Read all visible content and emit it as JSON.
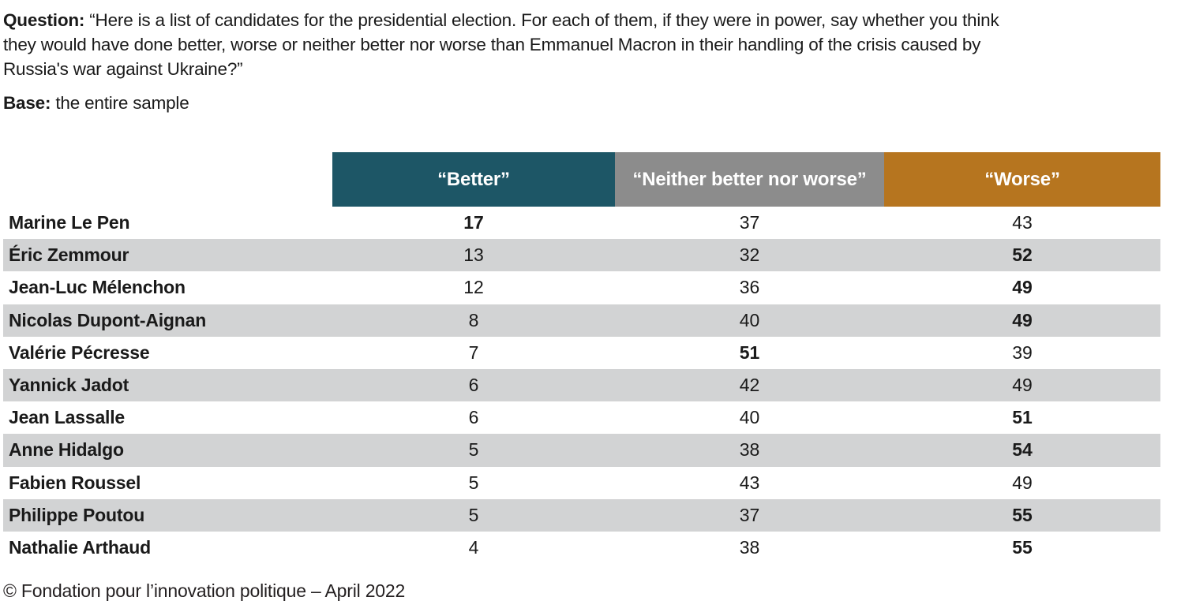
{
  "header": {
    "question_label": "Question:",
    "question_text": " “Here is a list of candidates for the presidential election. For each of them, if they were in power, say whether you think\nthey would have done better, worse or neither better nor worse than Emmanuel Macron in their handling of the crisis caused by\nRussia's war against Ukraine?”",
    "base_label": "Base:",
    "base_text": " the entire sample"
  },
  "colors": {
    "better_header": "#1d5666",
    "neither_header": "#8c8c8c",
    "worse_header": "#b6751f",
    "row_stripe": "#d2d3d4",
    "text": "#1a1a1a"
  },
  "table": {
    "columns": [
      "“Better”",
      "“Neither better nor worse”",
      "“Worse”"
    ],
    "rows": [
      {
        "name": "Marine Le Pen",
        "better": 17,
        "neither": 37,
        "worse": 43,
        "emphasis": "better"
      },
      {
        "name": "Éric Zemmour",
        "better": 13,
        "neither": 32,
        "worse": 52,
        "emphasis": "worse"
      },
      {
        "name": "Jean-Luc Mélenchon",
        "better": 12,
        "neither": 36,
        "worse": 49,
        "emphasis": "worse"
      },
      {
        "name": "Nicolas Dupont-Aignan",
        "better": 8,
        "neither": 40,
        "worse": 49,
        "emphasis": "worse"
      },
      {
        "name": "Valérie Pécresse",
        "better": 7,
        "neither": 51,
        "worse": 39,
        "emphasis": "neither"
      },
      {
        "name": "Yannick Jadot",
        "better": 6,
        "neither": 42,
        "worse": 49,
        "emphasis": ""
      },
      {
        "name": "Jean Lassalle",
        "better": 6,
        "neither": 40,
        "worse": 51,
        "emphasis": "worse"
      },
      {
        "name": "Anne Hidalgo",
        "better": 5,
        "neither": 38,
        "worse": 54,
        "emphasis": "worse"
      },
      {
        "name": "Fabien Roussel",
        "better": 5,
        "neither": 43,
        "worse": 49,
        "emphasis": ""
      },
      {
        "name": "Philippe Poutou",
        "better": 5,
        "neither": 37,
        "worse": 55,
        "emphasis": "worse"
      },
      {
        "name": "Nathalie Arthaud",
        "better": 4,
        "neither": 38,
        "worse": 55,
        "emphasis": "worse"
      }
    ]
  },
  "chart_data": {
    "type": "table",
    "title": "Candidates vs Emmanuel Macron on handling the crisis caused by Russia's war against Ukraine",
    "categories": [
      "Marine Le Pen",
      "Éric Zemmour",
      "Jean-Luc Mélenchon",
      "Nicolas Dupont-Aignan",
      "Valérie Pécresse",
      "Yannick Jadot",
      "Jean Lassalle",
      "Anne Hidalgo",
      "Fabien Roussel",
      "Philippe Poutou",
      "Nathalie Arthaud"
    ],
    "series": [
      {
        "name": "“Better”",
        "values": [
          17,
          13,
          12,
          8,
          7,
          6,
          6,
          5,
          5,
          5,
          4
        ]
      },
      {
        "name": "“Neither better nor worse”",
        "values": [
          37,
          32,
          36,
          40,
          51,
          42,
          40,
          38,
          43,
          37,
          38
        ]
      },
      {
        "name": "“Worse”",
        "values": [
          43,
          52,
          49,
          49,
          39,
          49,
          51,
          54,
          49,
          55,
          55
        ]
      }
    ]
  },
  "footer": {
    "text": "© Fondation pour l’innovation politique – April 2022"
  }
}
